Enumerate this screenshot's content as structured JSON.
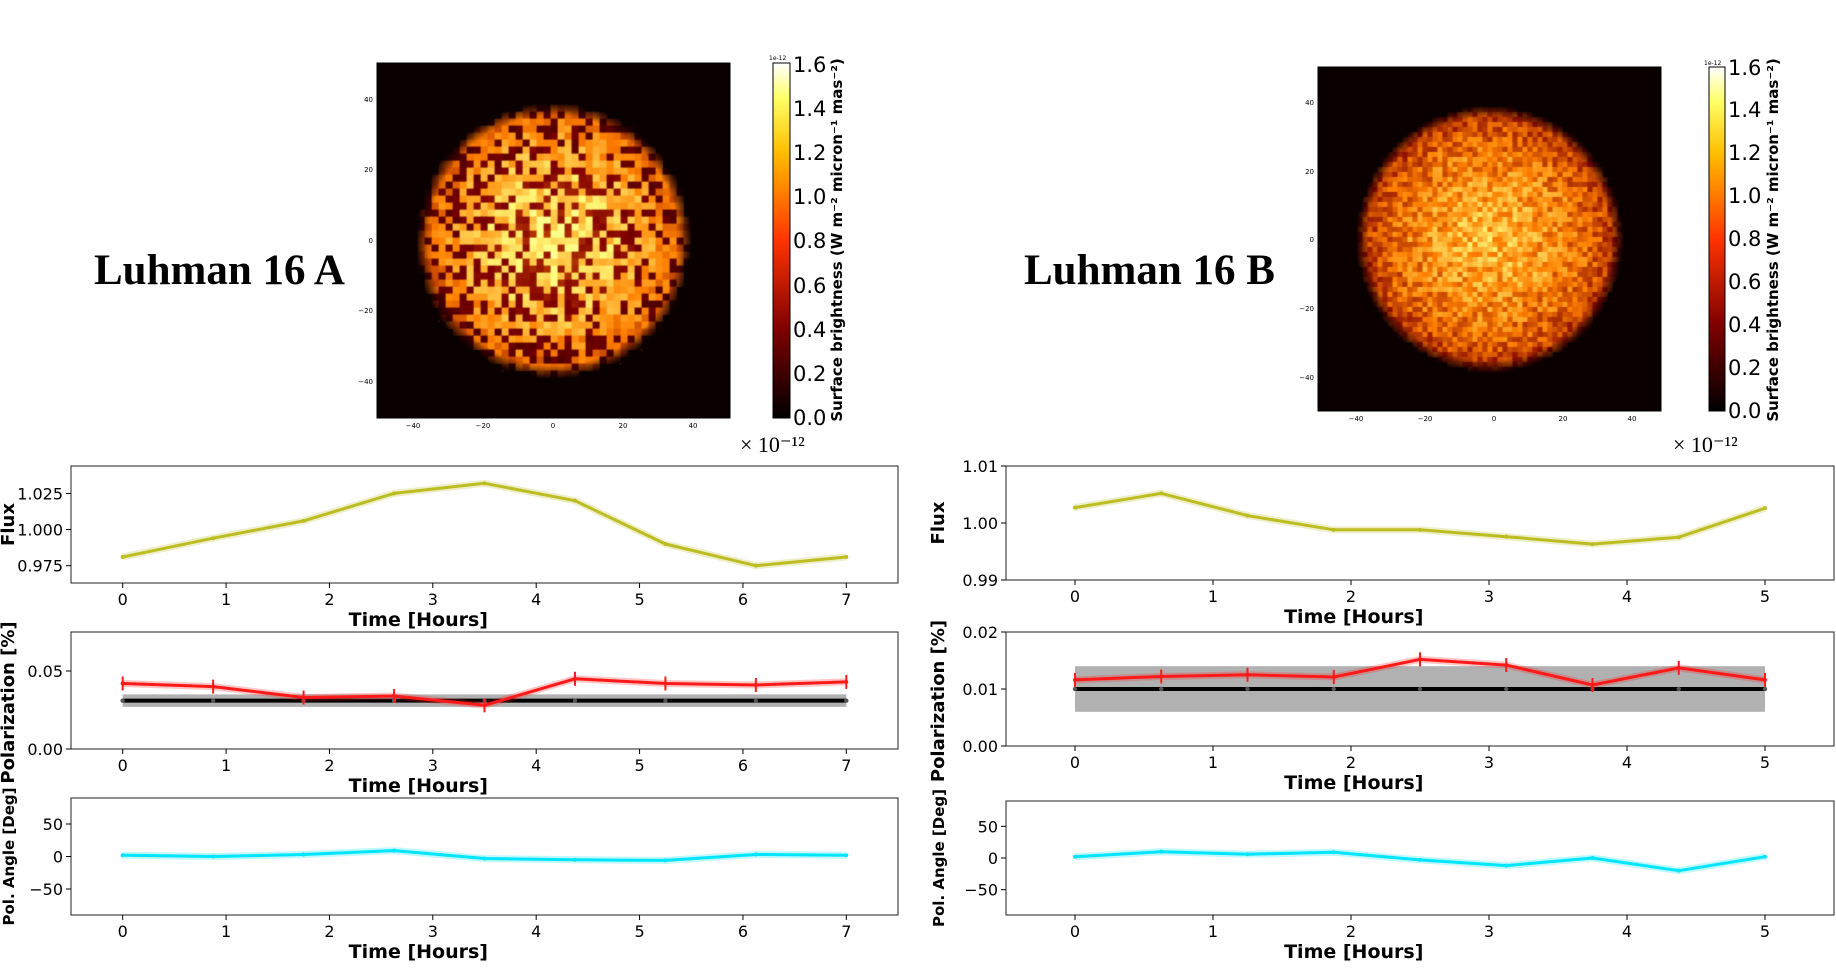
{
  "panels": [
    {
      "name": "Luhman 16 A",
      "map": {
        "cbar_label": "Surface brightness (W m⁻² micron⁻¹ mas⁻²)",
        "cbar_ticks": [
          "0.0",
          "0.2",
          "0.4",
          "0.6",
          "0.8",
          "1.0",
          "1.2",
          "1.4",
          "1.6"
        ],
        "cbar_exp_small": "1e-12",
        "cbar_offset": "× 10⁻¹²",
        "x_ticks": [
          "−40",
          "−20",
          "0",
          "20",
          "40"
        ],
        "y_ticks": [
          "40",
          "20",
          "0",
          "−20",
          "−40"
        ],
        "texture": "patchy"
      }
    },
    {
      "name": "Luhman 16 B",
      "map": {
        "cbar_label": "Surface brightness (W m⁻² micron⁻¹ mas⁻²)",
        "cbar_ticks": [
          "0.0",
          "0.2",
          "0.4",
          "0.6",
          "0.8",
          "1.0",
          "1.2",
          "1.4",
          "1.6"
        ],
        "cbar_exp_small": "1e-12",
        "cbar_offset": "× 10⁻¹²",
        "x_ticks": [
          "−40",
          "−20",
          "0",
          "20",
          "40"
        ],
        "y_ticks": [
          "40",
          "20",
          "0",
          "−20",
          "−40"
        ],
        "texture": "fine"
      }
    }
  ],
  "colors": {
    "flux": "#bcbd22",
    "pol": "#ff1a1a",
    "model": "#000000",
    "band": "#a8a8a8",
    "angle": "#00e5ff"
  },
  "chart_data": [
    {
      "id": "A-flux",
      "type": "line",
      "xlabel": "Time [Hours]",
      "ylabel": "Flux",
      "xlim": [
        -0.5,
        7.5
      ],
      "ylim": [
        0.963,
        1.044
      ],
      "xticks": [
        0,
        1,
        2,
        3,
        4,
        5,
        6,
        7
      ],
      "yticks": [
        0.975,
        1.0,
        1.025
      ],
      "ytick_labels": [
        "0.975",
        "1.000",
        "1.025"
      ],
      "series": [
        {
          "name": "Flux",
          "x": [
            0,
            0.875,
            1.75,
            2.625,
            3.5,
            4.375,
            5.25,
            6.125,
            7
          ],
          "values": [
            0.981,
            0.994,
            1.006,
            1.025,
            1.032,
            1.02,
            0.99,
            0.975,
            0.981
          ]
        }
      ]
    },
    {
      "id": "A-pol",
      "type": "line",
      "xlabel": "Time [Hours]",
      "ylabel": "Polarization [%]",
      "xlim": [
        -0.5,
        7.5
      ],
      "ylim": [
        0.0,
        0.075
      ],
      "xticks": [
        0,
        1,
        2,
        3,
        4,
        5,
        6,
        7
      ],
      "yticks": [
        0.0,
        0.05
      ],
      "ytick_labels": [
        "0.00",
        "0.05"
      ],
      "model": 0.031,
      "band": [
        0.027,
        0.035
      ],
      "series": [
        {
          "name": "Polarization",
          "x": [
            0,
            0.875,
            1.75,
            2.625,
            3.5,
            4.375,
            5.25,
            6.125,
            7
          ],
          "values": [
            0.042,
            0.04,
            0.033,
            0.034,
            0.028,
            0.045,
            0.042,
            0.041,
            0.043
          ]
        }
      ]
    },
    {
      "id": "A-angle",
      "type": "line",
      "xlabel": "Time [Hours]",
      "ylabel": "Pol. Angle [Deg]",
      "xlim": [
        -0.5,
        7.5
      ],
      "ylim": [
        -90,
        90
      ],
      "xticks": [
        0,
        1,
        2,
        3,
        4,
        5,
        6,
        7
      ],
      "yticks": [
        50,
        0,
        -50
      ],
      "ytick_labels": [
        "50",
        "0",
        "−50"
      ],
      "series": [
        {
          "name": "Pol. Angle",
          "x": [
            0,
            0.875,
            1.75,
            2.625,
            3.5,
            4.375,
            5.25,
            6.125,
            7
          ],
          "values": [
            2,
            0,
            3,
            9,
            -3,
            -5,
            -6,
            3,
            2
          ]
        }
      ]
    },
    {
      "id": "B-flux",
      "type": "line",
      "xlabel": "Time [Hours]",
      "ylabel": "Flux",
      "xlim": [
        -0.5,
        5.5
      ],
      "ylim": [
        0.99,
        1.01
      ],
      "xticks": [
        0,
        1,
        2,
        3,
        4,
        5
      ],
      "yticks": [
        0.99,
        1.0,
        1.01
      ],
      "ytick_labels": [
        "0.99",
        "1.00",
        "1.01"
      ],
      "series": [
        {
          "name": "Flux",
          "x": [
            0,
            0.625,
            1.25,
            1.875,
            2.5,
            3.125,
            3.75,
            4.375,
            5
          ],
          "values": [
            1.0027,
            1.0052,
            1.0013,
            0.9988,
            0.9988,
            0.9976,
            0.9963,
            0.9975,
            1.0026
          ]
        }
      ]
    },
    {
      "id": "B-pol",
      "type": "line",
      "xlabel": "Time [Hours]",
      "ylabel": "Polarization [%]",
      "xlim": [
        -0.5,
        5.5
      ],
      "ylim": [
        0.0,
        0.02
      ],
      "xticks": [
        0,
        1,
        2,
        3,
        4,
        5
      ],
      "yticks": [
        0.0,
        0.01,
        0.02
      ],
      "ytick_labels": [
        "0.00",
        "0.01",
        "0.02"
      ],
      "model": 0.01,
      "band": [
        0.006,
        0.014
      ],
      "series": [
        {
          "name": "Polarization",
          "x": [
            0,
            0.625,
            1.25,
            1.875,
            2.5,
            3.125,
            3.75,
            4.375,
            5
          ],
          "values": [
            0.0116,
            0.0122,
            0.0125,
            0.0121,
            0.0152,
            0.0142,
            0.0107,
            0.0137,
            0.0116
          ]
        }
      ]
    },
    {
      "id": "B-angle",
      "type": "line",
      "xlabel": "Time [Hours]",
      "ylabel": "Pol. Angle [Deg]",
      "xlim": [
        -0.5,
        5.5
      ],
      "ylim": [
        -90,
        90
      ],
      "xticks": [
        0,
        1,
        2,
        3,
        4,
        5
      ],
      "yticks": [
        50,
        0,
        -50
      ],
      "ytick_labels": [
        "50",
        "0",
        "−50"
      ],
      "series": [
        {
          "name": "Pol. Angle",
          "x": [
            0,
            0.625,
            1.25,
            1.875,
            2.5,
            3.125,
            3.75,
            4.375,
            5
          ],
          "values": [
            2,
            10,
            6,
            9,
            -3,
            -12,
            0,
            -20,
            2
          ]
        }
      ]
    }
  ]
}
